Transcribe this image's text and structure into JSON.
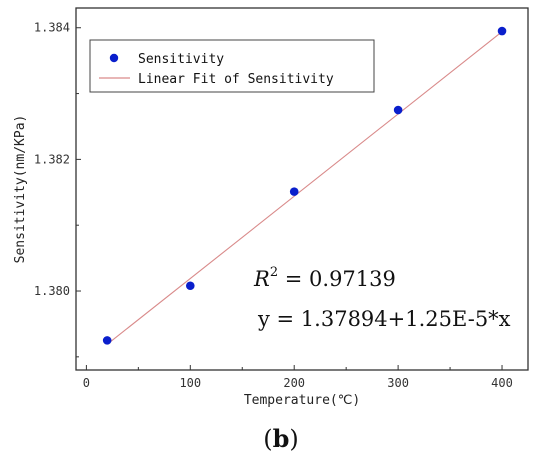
{
  "chart_data": {
    "type": "scatter",
    "title": "",
    "xlabel": "Temperature(℃)",
    "ylabel": "Sensitivity(nm/KPa)",
    "xlim": [
      -10,
      425
    ],
    "ylim": [
      1.3788,
      1.3843
    ],
    "xticks": [
      "0",
      "100",
      "200",
      "300",
      "400"
    ],
    "xtick_values": [
      0,
      100,
      200,
      300,
      400
    ],
    "yticks": [
      "1.380",
      "1.382",
      "1.384"
    ],
    "ytick_values": [
      1.38,
      1.382,
      1.384
    ],
    "grid": false,
    "legend": {
      "placement": "top-left",
      "entries": [
        "Sensitivity",
        "Linear Fit of Sensitivity"
      ]
    },
    "series": [
      {
        "name": "Sensitivity",
        "kind": "scatter",
        "color": "#0a1fcc",
        "x": [
          20,
          100,
          200,
          300,
          400
        ],
        "y": [
          1.37925,
          1.38008,
          1.38151,
          1.38275,
          1.38395
        ]
      },
      {
        "name": "Linear Fit of Sensitivity",
        "kind": "line",
        "color": "#d98a8a",
        "intercept": 1.37894,
        "slope": 1.25e-05,
        "x_range": [
          20,
          400
        ]
      }
    ],
    "annotations": {
      "r2_label": "R",
      "r2_exp": "2",
      "r2_value": " = 0.97139",
      "equation": "y = 1.37894+1.25E-5*x"
    }
  },
  "caption": {
    "open": "(",
    "letter": "b",
    "close": ")"
  }
}
